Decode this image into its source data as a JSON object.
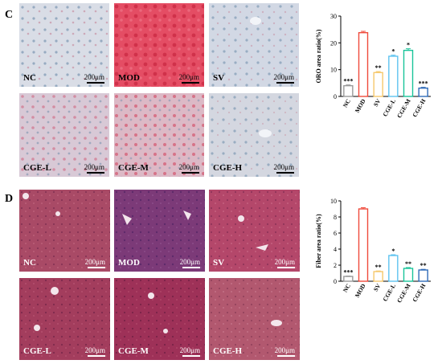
{
  "panels": {
    "c": {
      "letter": "C",
      "tiles": [
        {
          "label": "NC",
          "scale": "200μm",
          "fill": "#d9dde6"
        },
        {
          "label": "MOD",
          "scale": "200μm",
          "fill": "#e44d64"
        },
        {
          "label": "SV",
          "scale": "200μm",
          "fill": "#d2d8e4"
        },
        {
          "label": "CGE-L",
          "scale": "200μm",
          "fill": "#d8c9d6"
        },
        {
          "label": "CGE-M",
          "scale": "200μm",
          "fill": "#dcb9c6"
        },
        {
          "label": "CGE-H",
          "scale": "200μm",
          "fill": "#d4d7e0"
        }
      ]
    },
    "d": {
      "letter": "D",
      "tiles": [
        {
          "label": "NC",
          "scale": "200μm",
          "fill": "#a94a66"
        },
        {
          "label": "MOD",
          "scale": "200μm",
          "fill": "#7c3a78"
        },
        {
          "label": "SV",
          "scale": "200μm",
          "fill": "#b4476a"
        },
        {
          "label": "CGE-L",
          "scale": "200μm",
          "fill": "#a33d5d"
        },
        {
          "label": "CGE-M",
          "scale": "200μm",
          "fill": "#9e3158"
        },
        {
          "label": "CGE-H",
          "scale": "200μm",
          "fill": "#b2586f"
        }
      ]
    }
  },
  "chart_data": [
    {
      "type": "bar",
      "ylabel": "ORO area ratio(%)",
      "ylim": [
        0,
        30
      ],
      "yticks": [
        0,
        10,
        20,
        30
      ],
      "categories": [
        "NC",
        "MOD",
        "SV",
        "CGE-L",
        "CGE-M",
        "CGE-H"
      ],
      "values": [
        4.0,
        23.8,
        8.9,
        15.0,
        17.2,
        3.1
      ],
      "errors": [
        0.3,
        0.5,
        0.4,
        0.4,
        0.6,
        0.3
      ],
      "significance": [
        "***",
        "",
        "**",
        "*",
        "*",
        "***"
      ],
      "colors": [
        "#9a9a9a",
        "#ef4b3c",
        "#f6c86b",
        "#5ec3f0",
        "#19c49a",
        "#2f6bb8"
      ]
    },
    {
      "type": "bar",
      "ylabel": "Fiber area ratio(%)",
      "ylim": [
        0,
        10
      ],
      "yticks": [
        0,
        2,
        4,
        6,
        8,
        10
      ],
      "categories": [
        "NC",
        "MOD",
        "SV",
        "CGE-L",
        "CGE-M",
        "CGE-H"
      ],
      "values": [
        0.6,
        9.0,
        1.2,
        3.2,
        1.6,
        1.4
      ],
      "errors": [
        0.05,
        0.15,
        0.08,
        0.1,
        0.1,
        0.08
      ],
      "significance": [
        "***",
        "",
        "**",
        "*",
        "**",
        "**"
      ],
      "colors": [
        "#9a9a9a",
        "#ef4b3c",
        "#f6c86b",
        "#5ec3f0",
        "#19c49a",
        "#2f6bb8"
      ]
    }
  ]
}
